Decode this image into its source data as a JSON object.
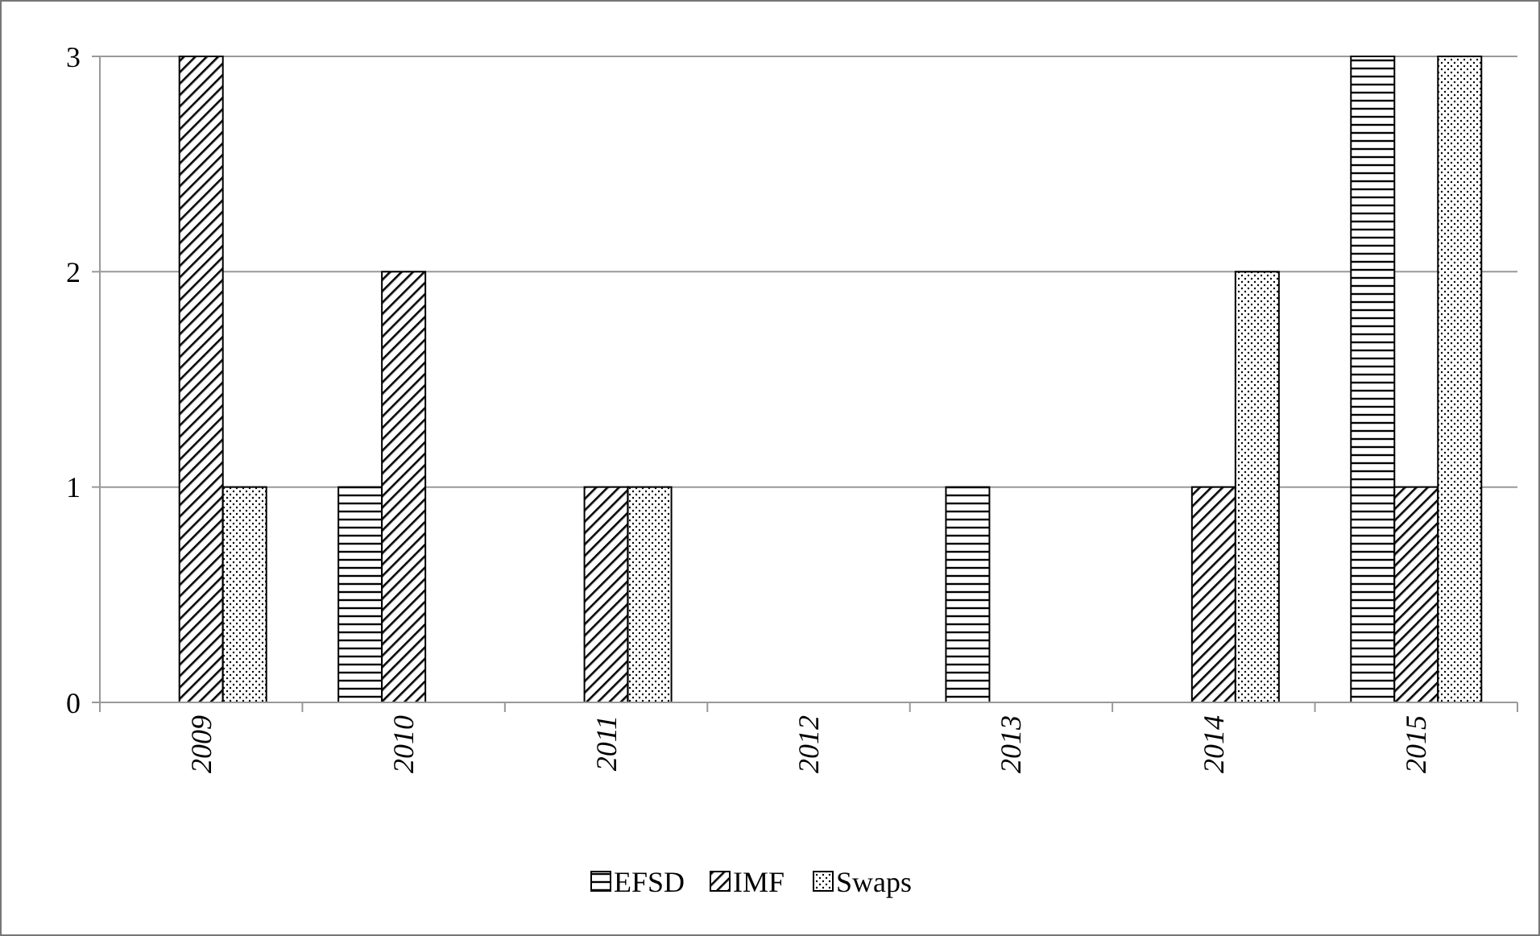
{
  "chart_data": {
    "type": "bar",
    "categories": [
      "2009",
      "2010",
      "2011",
      "2012",
      "2013",
      "2014",
      "2015"
    ],
    "series": [
      {
        "name": "EFSD",
        "color": "#000000",
        "values": [
          0,
          1,
          0,
          0,
          1,
          0,
          3
        ]
      },
      {
        "name": "IMF",
        "color": "#000000",
        "values": [
          3,
          2,
          1,
          0,
          0,
          1,
          1
        ]
      },
      {
        "name": "Swaps",
        "color": "#000000",
        "values": [
          1,
          0,
          1,
          0,
          0,
          2,
          3
        ]
      }
    ],
    "ylim": [
      0,
      3
    ],
    "yticks": [
      0,
      1,
      2,
      3
    ],
    "grid": "y",
    "legend": "bottom"
  }
}
